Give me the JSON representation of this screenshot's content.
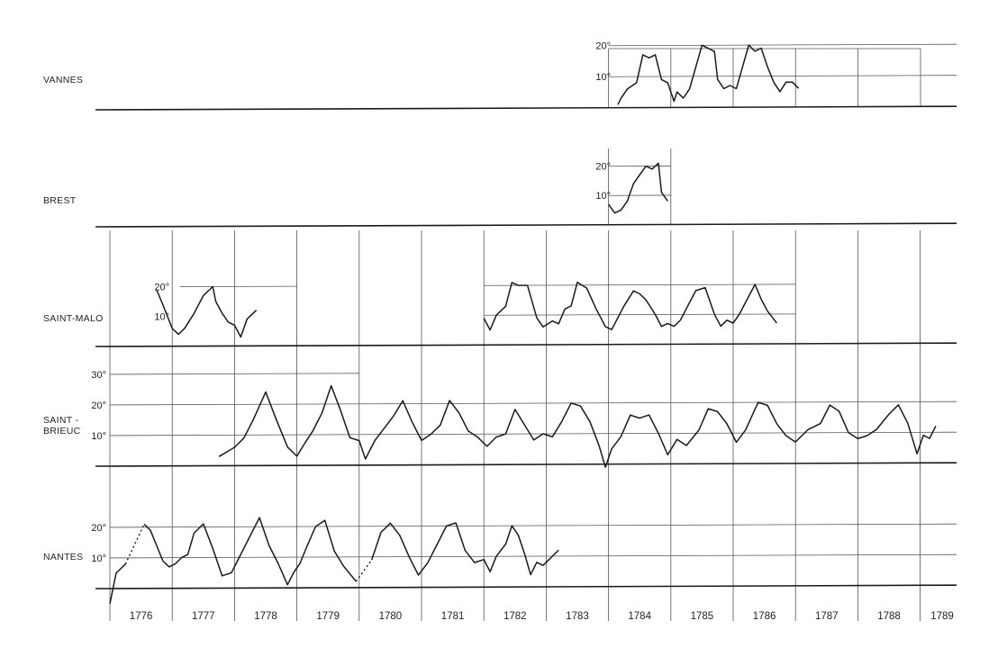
{
  "chart_data": {
    "type": "line",
    "x_unit": "year",
    "years": [
      "1776",
      "1777",
      "1778",
      "1779",
      "1780",
      "1781",
      "1782",
      "1783",
      "1784",
      "1785",
      "1786",
      "1787",
      "1788",
      "1789"
    ],
    "panels": [
      {
        "name": "VANNES",
        "name_lines": [
          "VANNES"
        ],
        "ticks": [
          "10°",
          "20°"
        ],
        "tick_values": [
          10,
          20
        ],
        "grid_from": 1784,
        "segments": [
          {
            "x": [
              1784.15,
              1784.2,
              1784.3,
              1784.45,
              1784.55,
              1784.65,
              1784.75,
              1784.85,
              1784.95,
              1785.05,
              1785.1,
              1785.2,
              1785.3,
              1785.4,
              1785.5,
              1785.6,
              1785.7,
              1785.75,
              1785.85,
              1785.95,
              1786.05,
              1786.15,
              1786.25,
              1786.35,
              1786.45,
              1786.55,
              1786.65,
              1786.75,
              1786.85,
              1786.95,
              1787.05
            ],
            "y": [
              1,
              3,
              6,
              8,
              17,
              16,
              17,
              9,
              8,
              2,
              5,
              3,
              6,
              13,
              20,
              19,
              18,
              9,
              6,
              7,
              6,
              13,
              20,
              18,
              19,
              13,
              8,
              5,
              8,
              8,
              6
            ]
          }
        ]
      },
      {
        "name": "BREST",
        "name_lines": [
          "BREST"
        ],
        "ticks": [
          "10°",
          "20°"
        ],
        "tick_values": [
          10,
          20
        ],
        "grid_from": 1784,
        "grid_to": 1785,
        "segments": [
          {
            "x": [
              1784.0,
              1784.1,
              1784.2,
              1784.3,
              1784.4,
              1784.5,
              1784.6,
              1784.7,
              1784.8,
              1784.85,
              1784.95
            ],
            "y": [
              7,
              4,
              5,
              8,
              14,
              17,
              20,
              19,
              21,
              11,
              8
            ]
          }
        ]
      },
      {
        "name": "SAINT-MALO",
        "name_lines": [
          "SAINT-MALO"
        ],
        "ticks": [
          "10°",
          "20°"
        ],
        "tick_values": [
          10,
          20
        ],
        "grid_from": 1782,
        "grid_to": 1787,
        "segments": [
          {
            "x": [
              1776.75,
              1776.85,
              1777.0,
              1777.1,
              1777.2,
              1777.35,
              1777.5,
              1777.65,
              1777.7,
              1777.8,
              1777.9,
              1778.0,
              1778.1,
              1778.2,
              1778.35
            ],
            "y": [
              19,
              14,
              6,
              4,
              6,
              11,
              17,
              20,
              15,
              11,
              8,
              7,
              3,
              9,
              12
            ]
          },
          {
            "x": [
              1782.0,
              1782.1,
              1782.2,
              1782.35,
              1782.45,
              1782.55,
              1782.7,
              1782.85,
              1782.95,
              1783.1,
              1783.2,
              1783.3,
              1783.4,
              1783.5,
              1783.65,
              1783.8,
              1783.95,
              1784.05,
              1784.15,
              1784.25,
              1784.4,
              1784.5,
              1784.6,
              1784.75,
              1784.85,
              1784.95,
              1785.05,
              1785.15,
              1785.25,
              1785.4,
              1785.55,
              1785.7,
              1785.8,
              1785.9,
              1786.0,
              1786.1,
              1786.2,
              1786.35,
              1786.45,
              1786.55,
              1786.7
            ],
            "y": [
              9,
              5,
              10,
              13,
              21,
              20,
              20,
              9,
              6,
              8,
              7,
              12,
              13,
              21,
              19,
              12,
              6,
              5,
              9,
              13,
              18,
              17,
              15,
              10,
              6,
              7,
              6,
              8,
              12,
              18,
              19,
              10,
              6,
              8,
              7,
              10,
              14,
              20,
              15,
              11,
              7
            ]
          }
        ]
      },
      {
        "name": "SAINT-BRIEUC",
        "name_lines": [
          "SAINT -",
          "BRIEUC"
        ],
        "ticks": [
          "10°",
          "20°",
          "30°"
        ],
        "tick_values": [
          10,
          20,
          30
        ],
        "grid_from": 1776,
        "grid_to": 1780,
        "segments": [
          {
            "x": [
              1777.75,
              1778.0,
              1778.15,
              1778.3,
              1778.5,
              1778.65,
              1778.85,
              1779.0,
              1779.15,
              1779.25,
              1779.4,
              1779.55,
              1779.7,
              1779.85,
              1780.0,
              1780.1,
              1780.25,
              1780.4,
              1780.55,
              1780.7,
              1780.85,
              1781.0,
              1781.15,
              1781.3,
              1781.45,
              1781.6,
              1781.75,
              1781.9,
              1782.05,
              1782.2,
              1782.35,
              1782.5,
              1782.65,
              1782.8,
              1782.95,
              1783.1,
              1783.25,
              1783.4,
              1783.55,
              1783.7,
              1783.85,
              1783.95,
              1784.05,
              1784.2,
              1784.35,
              1784.5,
              1784.65,
              1784.8,
              1784.95,
              1785.1,
              1785.25,
              1785.45,
              1785.6,
              1785.75,
              1785.9,
              1786.05,
              1786.2,
              1786.4,
              1786.55,
              1786.7,
              1786.85,
              1787.0,
              1787.2,
              1787.4,
              1787.55,
              1787.7,
              1787.85,
              1788.0,
              1788.15,
              1788.3,
              1788.5,
              1788.65,
              1788.8,
              1788.95,
              1789.05,
              1789.15,
              1789.25
            ],
            "y": [
              3,
              6,
              9,
              15,
              24,
              16,
              6,
              3,
              8,
              11,
              17,
              26,
              18,
              9,
              8,
              2,
              8,
              12,
              16,
              21,
              14,
              8,
              10,
              13,
              21,
              17,
              11,
              9,
              6,
              9,
              10,
              18,
              13,
              8,
              10,
              9,
              14,
              20,
              19,
              14,
              6,
              -1,
              5,
              9,
              16,
              15,
              16,
              10,
              3,
              8,
              6,
              11,
              18,
              17,
              13,
              7,
              11,
              20,
              19,
              13,
              9,
              7,
              11,
              13,
              19,
              17,
              10,
              8,
              9,
              11,
              16,
              19,
              13,
              3,
              9,
              8,
              12
            ]
          }
        ]
      },
      {
        "name": "NANTES",
        "name_lines": [
          "NANTES"
        ],
        "ticks": [
          "10°",
          "20°"
        ],
        "tick_values": [
          10,
          20
        ],
        "grid_from": 1776,
        "segments": [
          {
            "x": [
              1776.0,
              1776.1,
              1776.2,
              1776.25
            ],
            "y": [
              -5,
              5,
              7,
              8
            ]
          },
          {
            "x": [
              1776.25,
              1776.55
            ],
            "y": [
              8,
              21
            ],
            "dashed": true
          },
          {
            "x": [
              1776.55,
              1776.65,
              1776.75,
              1776.85,
              1776.95,
              1777.05,
              1777.15,
              1777.25,
              1777.35,
              1777.5,
              1777.65,
              1777.8,
              1777.95,
              1778.1,
              1778.25,
              1778.4,
              1778.55,
              1778.7,
              1778.85,
              1778.95,
              1779.05,
              1779.15,
              1779.3,
              1779.45,
              1779.6,
              1779.75,
              1779.95
            ],
            "y": [
              21,
              19,
              14,
              9,
              7,
              8,
              10,
              11,
              18,
              21,
              13,
              4,
              5,
              11,
              17,
              23,
              14,
              8,
              1,
              5,
              8,
              13,
              20,
              22,
              12,
              7,
              2
            ]
          },
          {
            "x": [
              1779.95,
              1780.2
            ],
            "y": [
              2,
              9
            ],
            "dashed": true
          },
          {
            "x": [
              1780.2,
              1780.35,
              1780.5,
              1780.65,
              1780.8,
              1780.95,
              1781.1,
              1781.25,
              1781.4,
              1781.55,
              1781.7,
              1781.85,
              1782.0,
              1782.1,
              1782.2,
              1782.35,
              1782.45,
              1782.55,
              1782.65,
              1782.75,
              1782.85,
              1782.95,
              1783.05,
              1783.2
            ],
            "y": [
              9,
              18,
              21,
              17,
              10,
              4,
              8,
              14,
              20,
              21,
              12,
              8,
              9,
              5,
              10,
              14,
              20,
              17,
              11,
              4,
              8,
              7,
              9,
              12
            ]
          }
        ]
      }
    ]
  }
}
